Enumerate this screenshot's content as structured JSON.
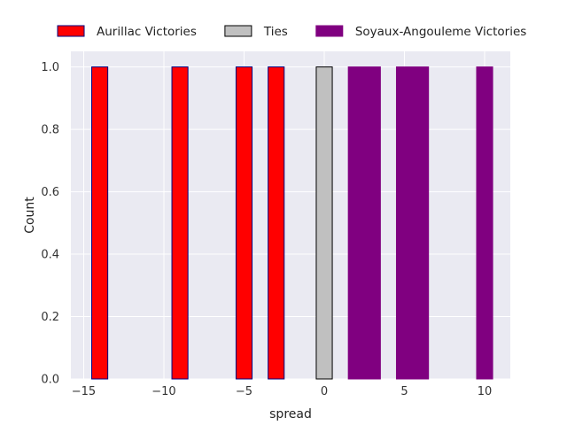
{
  "chart_data": {
    "type": "bar",
    "xlabel": "spread",
    "ylabel": "Count",
    "xlim": [
      -15.8,
      11.6
    ],
    "ylim": [
      0,
      1.05
    ],
    "xticks": [
      -15,
      -10,
      -5,
      0,
      5,
      10
    ],
    "yticks": [
      0.0,
      0.2,
      0.4,
      0.6,
      0.8,
      1.0
    ],
    "xtick_labels": [
      "−15",
      "−10",
      "−5",
      "0",
      "5",
      "10"
    ],
    "ytick_labels": [
      "0.0",
      "0.2",
      "0.4",
      "0.6",
      "0.8",
      "1.0"
    ],
    "grid": true,
    "legend_position": "top, outside plot, horizontal",
    "series": [
      {
        "name": "Aurillac Victories",
        "color": "#ff0000",
        "edgecolor": "#000080",
        "bins": [
          {
            "x0": -14.5,
            "x1": -13.5,
            "count": 1
          },
          {
            "x0": -9.5,
            "x1": -8.5,
            "count": 1
          },
          {
            "x0": -5.5,
            "x1": -4.5,
            "count": 1
          },
          {
            "x0": -3.5,
            "x1": -2.5,
            "count": 1
          }
        ]
      },
      {
        "name": "Ties",
        "color": "#c0c0c0",
        "edgecolor": "#000000",
        "bins": [
          {
            "x0": -0.5,
            "x1": 0.5,
            "count": 1
          }
        ]
      },
      {
        "name": "Soyaux-Angouleme Victories",
        "color": "#800080",
        "edgecolor": "#800080",
        "bins": [
          {
            "x0": 1.5,
            "x1": 3.5,
            "count": 1
          },
          {
            "x0": 4.5,
            "x1": 6.5,
            "count": 1
          },
          {
            "x0": 9.5,
            "x1": 10.5,
            "count": 1
          }
        ]
      }
    ]
  }
}
